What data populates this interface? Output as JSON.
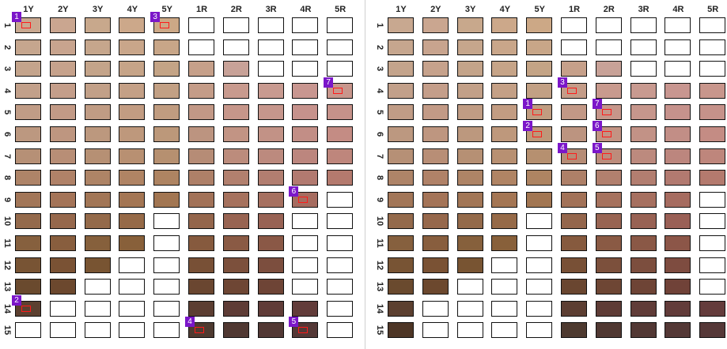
{
  "columns": [
    "1Y",
    "2Y",
    "3Y",
    "4Y",
    "5Y",
    "1R",
    "2R",
    "3R",
    "4R",
    "5R"
  ],
  "rows": [
    "1",
    "2",
    "3",
    "4",
    "5",
    "6",
    "7",
    "8",
    "9",
    "10",
    "11",
    "12",
    "13",
    "14",
    "15"
  ],
  "panels": [
    {
      "name": "left",
      "grid": [
        [
          "#c8a890",
          "#caa690",
          "#c8a88c",
          "#cca88a",
          "#cca886",
          null,
          null,
          null,
          null,
          null
        ],
        [
          "#c6a68e",
          "#c8a48e",
          "#c6a68c",
          "#c9a68a",
          "#c8a688",
          null,
          null,
          null,
          null,
          null
        ],
        [
          "#c4a48c",
          "#c6a28c",
          "#c4a48a",
          "#c6a488",
          "#c4a486",
          "#c6a08a",
          "#c8a298",
          null,
          null,
          null
        ],
        [
          "#c2a08a",
          "#c49e8a",
          "#c2a088",
          "#c4a086",
          "#c2a084",
          "#c49c88",
          "#c89a8e",
          "#c89a90",
          "#c89690",
          "#c8968c"
        ],
        [
          "#c09c86",
          "#c29a86",
          "#c09c84",
          "#c29c82",
          "#c09c80",
          "#c29886",
          "#c6968a",
          "#c6968c",
          "#c6928c",
          "#c6928a"
        ],
        [
          "#bc9880",
          "#be9680",
          "#bc987e",
          "#be987c",
          "#bc987a",
          "#bc9480",
          "#c29484",
          "#c29286",
          "#c28e86",
          "#c48c84"
        ],
        [
          "#b69076",
          "#b88e76",
          "#b69074",
          "#b89072",
          "#b69070",
          "#b68c76",
          "#bc8c7c",
          "#bc8a7e",
          "#bc867e",
          "#be867c"
        ],
        [
          "#ae8468",
          "#b08268",
          "#ae8466",
          "#b08464",
          "#ae8462",
          "#ae8068",
          "#b2806e",
          "#b27e70",
          "#b27a70",
          "#b47a6e"
        ],
        [
          "#a27658",
          "#a47458",
          "#a27656",
          "#a47654",
          "#a27652",
          "#a27258",
          "#a6725e",
          "#a67060",
          "#a66c60",
          null
        ],
        [
          "#946a4c",
          "#96684c",
          "#946a4a",
          "#966a48",
          null,
          "#94664c",
          "#986452",
          "#986254",
          null,
          null
        ],
        [
          "#86603e",
          "#885e3e",
          "#86603c",
          "#88603a",
          null,
          "#865a3e",
          "#8a5a44",
          "#8a5846",
          null,
          null
        ],
        [
          "#785434",
          "#7a5234",
          "#785432",
          null,
          null,
          "#785036",
          "#7c503c",
          "#7c4e3e",
          null,
          null
        ],
        [
          "#6a4a2e",
          "#6c482e",
          null,
          null,
          null,
          "#6a4630",
          "#6e4634",
          "#6e4436",
          null,
          null
        ],
        [
          "#5c4030",
          null,
          null,
          null,
          null,
          "#5c3e32",
          "#5e3c36",
          "#603c38",
          "#623c3a",
          null
        ],
        [
          null,
          null,
          null,
          null,
          null,
          "#4e3a30",
          "#503832",
          "#523834",
          "#543836",
          null
        ]
      ],
      "markers": [
        {
          "label": "1",
          "row": 0,
          "col": 0
        },
        {
          "label": "3",
          "row": 0,
          "col": 4
        },
        {
          "label": "7",
          "row": 3,
          "col": 9
        },
        {
          "label": "6",
          "row": 8,
          "col": 8
        },
        {
          "label": "2",
          "row": 13,
          "col": 0
        },
        {
          "label": "4",
          "row": 14,
          "col": 5
        },
        {
          "label": "5",
          "row": 14,
          "col": 8
        }
      ]
    },
    {
      "name": "right",
      "grid": [
        [
          "#c8a890",
          "#caa690",
          "#c8a88c",
          "#cca88a",
          "#cca886",
          null,
          null,
          null,
          null,
          null
        ],
        [
          "#c6a68e",
          "#c8a48e",
          "#c6a68c",
          "#c9a68a",
          "#c8a688",
          null,
          null,
          null,
          null,
          null
        ],
        [
          "#c4a48c",
          "#c6a28c",
          "#c4a48a",
          "#c6a488",
          "#c4a486",
          "#c6a08a",
          "#c8a298",
          null,
          null,
          null
        ],
        [
          "#c2a08a",
          "#c49e8a",
          "#c2a088",
          "#c4a086",
          "#c2a084",
          "#c49c88",
          "#c89a8e",
          "#c89a90",
          "#c89690",
          "#c8968c"
        ],
        [
          "#c09c86",
          "#c29a86",
          "#c09c84",
          "#c29c82",
          "#c09c80",
          "#c29886",
          "#c6968a",
          "#c6968c",
          "#c6928c",
          "#c6928a"
        ],
        [
          "#bc9880",
          "#be9680",
          "#bc987e",
          "#be987c",
          "#bc987a",
          "#bc9480",
          "#c29484",
          "#c29286",
          "#c28e86",
          "#c48c84"
        ],
        [
          "#b69076",
          "#b88e76",
          "#b69074",
          "#b89072",
          "#b69070",
          "#b68c76",
          "#bc8c7c",
          "#bc8a7e",
          "#bc867e",
          "#be867c"
        ],
        [
          "#ae8468",
          "#b08268",
          "#ae8466",
          "#b08464",
          "#ae8462",
          "#ae8068",
          "#b2806e",
          "#b27e70",
          "#b27a70",
          "#b47a6e"
        ],
        [
          "#a27658",
          "#a47458",
          "#a27656",
          "#a47654",
          "#a27652",
          "#a27258",
          "#a6725e",
          "#a67060",
          "#a66c60",
          null
        ],
        [
          "#946a4c",
          "#96684c",
          "#946a4a",
          "#966a48",
          null,
          "#94664c",
          "#986452",
          "#986254",
          "#9a6056",
          null
        ],
        [
          "#86603e",
          "#885e3e",
          "#86603c",
          "#88603a",
          null,
          "#865a3e",
          "#8a5a44",
          "#8a5846",
          "#8c5648",
          null
        ],
        [
          "#785434",
          "#7a5234",
          "#785432",
          null,
          null,
          "#785036",
          "#7c503c",
          "#7c4e3e",
          "#7e4c40",
          null
        ],
        [
          "#6a4a2e",
          "#6c482e",
          null,
          null,
          null,
          "#6a4630",
          "#6e4634",
          "#6e4436",
          "#704238",
          null
        ],
        [
          "#5c4030",
          null,
          null,
          null,
          null,
          "#5c3e32",
          "#5e3c36",
          "#603c38",
          "#623c3a",
          "#643c3c"
        ],
        [
          "#4e3626",
          null,
          null,
          null,
          null,
          "#4e3a30",
          "#503832",
          "#523834",
          "#543836",
          "#563838"
        ]
      ],
      "markers": [
        {
          "label": "3",
          "row": 3,
          "col": 5
        },
        {
          "label": "1",
          "row": 4,
          "col": 4
        },
        {
          "label": "7",
          "row": 4,
          "col": 6
        },
        {
          "label": "2",
          "row": 5,
          "col": 4
        },
        {
          "label": "6",
          "row": 5,
          "col": 6
        },
        {
          "label": "4",
          "row": 6,
          "col": 5
        },
        {
          "label": "5",
          "row": 6,
          "col": 6
        }
      ]
    }
  ]
}
